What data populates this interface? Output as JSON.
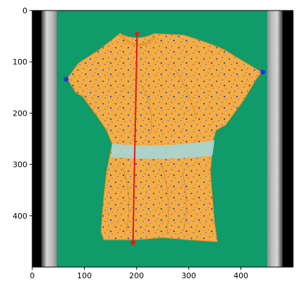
{
  "image_axes": {
    "image_width": 500,
    "image_height": 500,
    "x_ticks": [
      0,
      100,
      200,
      300,
      400
    ],
    "y_ticks": [
      0,
      100,
      200,
      300,
      400
    ]
  },
  "colors": {
    "green_mat": "#0f9b6a",
    "garment": "#f4ad45",
    "garment_dark": "#d98c2a",
    "speckle_blue": "#2f53b8",
    "waist_fabric": "#a9d4cf",
    "red_line": "#e31a1c",
    "blue_marker": "#1a35e0",
    "side_bar": "#cfcfcf",
    "frame": "#000000"
  },
  "annotations": {
    "red_line": {
      "x1": 201,
      "y1": 45,
      "x2": 193,
      "y2": 452
    },
    "blue_points": [
      {
        "x": 65,
        "y": 134
      },
      {
        "x": 442,
        "y": 120
      }
    ]
  },
  "icons": {
    "garment": "tshirt-photo"
  }
}
